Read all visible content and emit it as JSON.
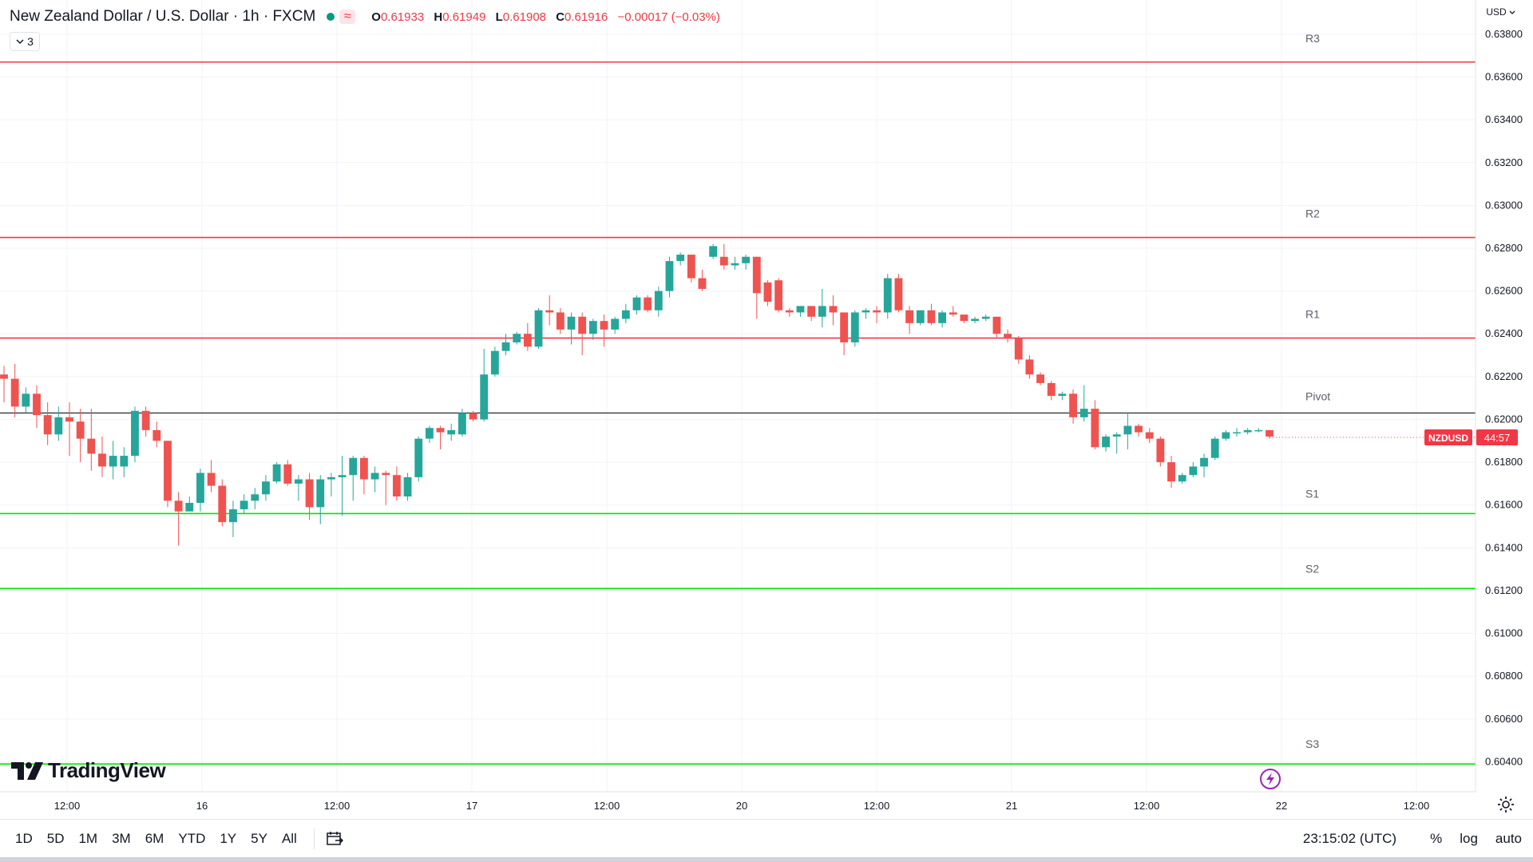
{
  "legend": {
    "symbol_title": "New Zealand Dollar / U.S. Dollar · 1h · FXCM",
    "open_key": "O",
    "open": "0.61933",
    "high_key": "H",
    "high": "0.61949",
    "low_key": "L",
    "low": "0.61908",
    "close_key": "C",
    "close": "0.61916",
    "change": "−0.00017 (−0.03%)",
    "approx_icon": "≈"
  },
  "indicators_count": "3",
  "currency": "USD",
  "logo_text": "TradingView",
  "periods": [
    "1D",
    "5D",
    "1M",
    "3M",
    "6M",
    "YTD",
    "1Y",
    "5Y",
    "All"
  ],
  "clock": "23:15:02 (UTC)",
  "scale_options": {
    "percent": "%",
    "log": "log",
    "auto": "auto"
  },
  "icons": {
    "compare": "calendar-range-icon",
    "settings": "gear-icon",
    "alert": "lightning-icon",
    "logo": "tradingview-logo-icon"
  },
  "colors": {
    "up": "#26a69a",
    "down": "#ef5350",
    "resistance": "#f23645",
    "support": "#00e600",
    "pivot": "#131722"
  },
  "chart_data": {
    "type": "candlestick",
    "symbol": "NZDUSD",
    "interval": "1h",
    "last_price": "0.61916",
    "price_tag_symbol": "NZDUSD",
    "countdown": "44:57",
    "ylim": [
      0.6026,
      0.6396
    ],
    "y_ticks": [
      "0.63800",
      "0.63600",
      "0.63400",
      "0.63200",
      "0.63000",
      "0.62800",
      "0.62600",
      "0.62400",
      "0.62200",
      "0.62000",
      "0.61800",
      "0.61600",
      "0.61400",
      "0.61200",
      "0.61000",
      "0.60800",
      "0.60600",
      "0.60400"
    ],
    "x_ticks": [
      "12:00",
      "16",
      "12:00",
      "17",
      "12:00",
      "20",
      "12:00",
      "21",
      "12:00",
      "22",
      "12:00"
    ],
    "pivot_levels": [
      {
        "label": "R3",
        "value": 0.6367,
        "kind": "resistance"
      },
      {
        "label": "R2",
        "value": 0.6285,
        "kind": "resistance"
      },
      {
        "label": "R1",
        "value": 0.6238,
        "kind": "resistance"
      },
      {
        "label": "Pivot",
        "value": 0.6203,
        "kind": "pivot"
      },
      {
        "label": "S1",
        "value": 0.6156,
        "kind": "support"
      },
      {
        "label": "S2",
        "value": 0.6121,
        "kind": "support"
      },
      {
        "label": "S3",
        "value": 0.6039,
        "kind": "support"
      }
    ],
    "candles": [
      [
        0.6221,
        0.6225,
        0.6208,
        0.6219
      ],
      [
        0.6219,
        0.6226,
        0.6201,
        0.6206
      ],
      [
        0.6206,
        0.6215,
        0.6203,
        0.6212
      ],
      [
        0.6212,
        0.6216,
        0.6196,
        0.6202
      ],
      [
        0.6202,
        0.6208,
        0.6188,
        0.6193
      ],
      [
        0.6193,
        0.6206,
        0.619,
        0.6201
      ],
      [
        0.6201,
        0.6208,
        0.6183,
        0.6199
      ],
      [
        0.6199,
        0.6205,
        0.618,
        0.6191
      ],
      [
        0.6191,
        0.6205,
        0.6176,
        0.6184
      ],
      [
        0.6184,
        0.6192,
        0.6173,
        0.6178
      ],
      [
        0.6178,
        0.619,
        0.6172,
        0.6183
      ],
      [
        0.6178,
        0.6187,
        0.6173,
        0.6183
      ],
      [
        0.6183,
        0.6206,
        0.618,
        0.6204
      ],
      [
        0.6204,
        0.6206,
        0.6192,
        0.6195
      ],
      [
        0.6195,
        0.6199,
        0.6187,
        0.619
      ],
      [
        0.619,
        0.619,
        0.6159,
        0.6162
      ],
      [
        0.6162,
        0.6166,
        0.6141,
        0.6157
      ],
      [
        0.6157,
        0.6164,
        0.6158,
        0.6161
      ],
      [
        0.6161,
        0.6177,
        0.6157,
        0.6175
      ],
      [
        0.6175,
        0.6181,
        0.6166,
        0.6169
      ],
      [
        0.6169,
        0.6172,
        0.615,
        0.6152
      ],
      [
        0.6152,
        0.6162,
        0.6145,
        0.6158
      ],
      [
        0.6158,
        0.6165,
        0.6156,
        0.6162
      ],
      [
        0.6162,
        0.6168,
        0.6158,
        0.6165
      ],
      [
        0.6165,
        0.6174,
        0.6162,
        0.6171
      ],
      [
        0.6171,
        0.618,
        0.617,
        0.6179
      ],
      [
        0.6179,
        0.6181,
        0.6169,
        0.617
      ],
      [
        0.617,
        0.6174,
        0.6162,
        0.6172
      ],
      [
        0.6172,
        0.6175,
        0.6153,
        0.6159
      ],
      [
        0.6159,
        0.6174,
        0.6151,
        0.6172
      ],
      [
        0.6172,
        0.6175,
        0.6164,
        0.6173
      ],
      [
        0.6173,
        0.6183,
        0.6155,
        0.6174
      ],
      [
        0.6174,
        0.6183,
        0.6162,
        0.6182
      ],
      [
        0.6182,
        0.6183,
        0.6165,
        0.6172
      ],
      [
        0.6172,
        0.6178,
        0.6166,
        0.6175
      ],
      [
        0.6175,
        0.6176,
        0.616,
        0.6174
      ],
      [
        0.6174,
        0.6178,
        0.6162,
        0.6164
      ],
      [
        0.6164,
        0.6175,
        0.6162,
        0.6173
      ],
      [
        0.6173,
        0.6192,
        0.6171,
        0.6191
      ],
      [
        0.6191,
        0.6197,
        0.6189,
        0.6196
      ],
      [
        0.6196,
        0.6197,
        0.6186,
        0.6194
      ],
      [
        0.6193,
        0.6198,
        0.619,
        0.6195
      ],
      [
        0.6193,
        0.6205,
        0.6192,
        0.6203
      ],
      [
        0.6203,
        0.6204,
        0.6199,
        0.62
      ],
      [
        0.62,
        0.6233,
        0.6199,
        0.6221
      ],
      [
        0.6221,
        0.6234,
        0.622,
        0.6232
      ],
      [
        0.6232,
        0.624,
        0.623,
        0.6236
      ],
      [
        0.6236,
        0.6241,
        0.6235,
        0.624
      ],
      [
        0.624,
        0.6245,
        0.6232,
        0.6234
      ],
      [
        0.6234,
        0.6252,
        0.6233,
        0.6251
      ],
      [
        0.6251,
        0.6258,
        0.6244,
        0.625
      ],
      [
        0.625,
        0.6252,
        0.624,
        0.6242
      ],
      [
        0.6242,
        0.625,
        0.6235,
        0.6248
      ],
      [
        0.6248,
        0.625,
        0.623,
        0.624
      ],
      [
        0.624,
        0.6247,
        0.6237,
        0.6246
      ],
      [
        0.6246,
        0.6249,
        0.6234,
        0.6242
      ],
      [
        0.6242,
        0.6248,
        0.624,
        0.6247
      ],
      [
        0.6247,
        0.6254,
        0.6245,
        0.6251
      ],
      [
        0.6251,
        0.6258,
        0.6249,
        0.6257
      ],
      [
        0.6257,
        0.6258,
        0.625,
        0.6251
      ],
      [
        0.6251,
        0.6262,
        0.6248,
        0.626
      ],
      [
        0.626,
        0.6276,
        0.6257,
        0.6274
      ],
      [
        0.6274,
        0.6278,
        0.6272,
        0.6277
      ],
      [
        0.6277,
        0.6277,
        0.6264,
        0.6266
      ],
      [
        0.6266,
        0.627,
        0.626,
        0.6261
      ],
      [
        0.6276,
        0.6282,
        0.6275,
        0.6281
      ],
      [
        0.6276,
        0.6282,
        0.627,
        0.6272
      ],
      [
        0.6272,
        0.6276,
        0.627,
        0.6273
      ],
      [
        0.6273,
        0.6277,
        0.627,
        0.6276
      ],
      [
        0.6276,
        0.6276,
        0.6247,
        0.6259
      ],
      [
        0.6264,
        0.6265,
        0.6253,
        0.6255
      ],
      [
        0.6265,
        0.6266,
        0.625,
        0.6251
      ],
      [
        0.6251,
        0.6252,
        0.6248,
        0.625
      ],
      [
        0.625,
        0.6253,
        0.6248,
        0.6253
      ],
      [
        0.6253,
        0.6253,
        0.6246,
        0.6248
      ],
      [
        0.6248,
        0.6261,
        0.6243,
        0.6253
      ],
      [
        0.6253,
        0.6258,
        0.6244,
        0.625
      ],
      [
        0.625,
        0.625,
        0.623,
        0.6236
      ],
      [
        0.6236,
        0.6251,
        0.6234,
        0.625
      ],
      [
        0.625,
        0.6252,
        0.6247,
        0.6251
      ],
      [
        0.6251,
        0.6253,
        0.6245,
        0.625
      ],
      [
        0.625,
        0.6268,
        0.6247,
        0.6266
      ],
      [
        0.6266,
        0.6268,
        0.625,
        0.6251
      ],
      [
        0.6251,
        0.6253,
        0.624,
        0.6245
      ],
      [
        0.6245,
        0.6251,
        0.6244,
        0.6251
      ],
      [
        0.6251,
        0.6254,
        0.6244,
        0.6245
      ],
      [
        0.6245,
        0.6251,
        0.6243,
        0.625
      ],
      [
        0.625,
        0.6253,
        0.6248,
        0.6249
      ],
      [
        0.6249,
        0.6249,
        0.6245,
        0.6246
      ],
      [
        0.6246,
        0.6248,
        0.6245,
        0.6247
      ],
      [
        0.6247,
        0.6249,
        0.6246,
        0.6248
      ],
      [
        0.6248,
        0.6248,
        0.6238,
        0.624
      ],
      [
        0.624,
        0.6242,
        0.6236,
        0.6238
      ],
      [
        0.6238,
        0.6239,
        0.6226,
        0.6228
      ],
      [
        0.6228,
        0.623,
        0.6219,
        0.6221
      ],
      [
        0.6221,
        0.6222,
        0.6216,
        0.6217
      ],
      [
        0.6217,
        0.6218,
        0.6209,
        0.6211
      ],
      [
        0.6211,
        0.6213,
        0.6209,
        0.6212
      ],
      [
        0.6212,
        0.6214,
        0.6198,
        0.6201
      ],
      [
        0.6201,
        0.6216,
        0.6199,
        0.6205
      ],
      [
        0.6205,
        0.6209,
        0.6186,
        0.6187
      ],
      [
        0.6187,
        0.6193,
        0.6185,
        0.6192
      ],
      [
        0.6192,
        0.6194,
        0.6184,
        0.6193
      ],
      [
        0.6193,
        0.6203,
        0.6186,
        0.6197
      ],
      [
        0.6197,
        0.6198,
        0.6192,
        0.6194
      ],
      [
        0.6194,
        0.6196,
        0.6189,
        0.6191
      ],
      [
        0.6191,
        0.6192,
        0.6178,
        0.618
      ],
      [
        0.618,
        0.6183,
        0.6168,
        0.6171
      ],
      [
        0.6171,
        0.6175,
        0.617,
        0.6174
      ],
      [
        0.6174,
        0.618,
        0.6173,
        0.6178
      ],
      [
        0.6178,
        0.6184,
        0.6173,
        0.6182
      ],
      [
        0.6182,
        0.6192,
        0.6181,
        0.6191
      ],
      [
        0.6191,
        0.6195,
        0.619,
        0.6194
      ],
      [
        0.6194,
        0.6196,
        0.6192,
        0.6194
      ],
      [
        0.6194,
        0.6196,
        0.6193,
        0.6195
      ],
      [
        0.6195,
        0.6196,
        0.6194,
        0.6195
      ],
      [
        0.6195,
        0.6195,
        0.6191,
        0.6192
      ]
    ]
  }
}
